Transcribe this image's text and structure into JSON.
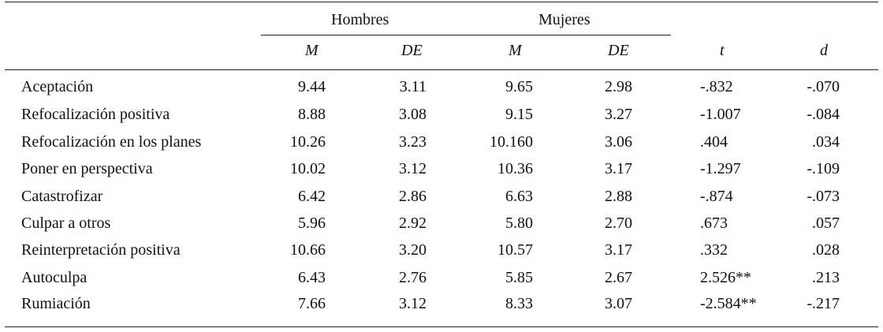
{
  "table": {
    "group_headers": {
      "men": "Hombres",
      "women": "Mujeres"
    },
    "sub_headers": [
      "M",
      "DE",
      "M",
      "DE",
      "t",
      "d"
    ],
    "rows": [
      {
        "label": "Aceptación",
        "values": [
          "9.44",
          "3.11",
          "9.65",
          "2.98",
          "-.832",
          "-.070"
        ]
      },
      {
        "label": "Refocalización positiva",
        "values": [
          "8.88",
          "3.08",
          "9.15",
          "3.27",
          "-1.007",
          "-.084"
        ]
      },
      {
        "label": "Refocalización en los planes",
        "values": [
          "10.26",
          "3.23",
          "10.160",
          "3.06",
          ".404",
          ".034"
        ]
      },
      {
        "label": "Poner en perspectiva",
        "values": [
          "10.02",
          "3.12",
          "10.36",
          "3.17",
          "-1.297",
          "-.109"
        ]
      },
      {
        "label": "Catastrofizar",
        "values": [
          "6.42",
          "2.86",
          "6.63",
          "2.88",
          "-.874",
          "-.073"
        ]
      },
      {
        "label": "Culpar a otros",
        "values": [
          "5.96",
          "2.92",
          "5.80",
          "2.70",
          ".673",
          ".057"
        ]
      },
      {
        "label": "Reinterpretación positiva",
        "values": [
          "10.66",
          "3.20",
          "10.57",
          "3.17",
          ".332",
          ".028"
        ]
      },
      {
        "label": "Autoculpa",
        "values": [
          "6.43",
          "2.76",
          "5.85",
          "2.67",
          "2.526**",
          ".213"
        ]
      },
      {
        "label": "Rumiación",
        "values": [
          "7.66",
          "3.12",
          "8.33",
          "3.07",
          "-2.584**",
          "-.217"
        ]
      }
    ]
  }
}
